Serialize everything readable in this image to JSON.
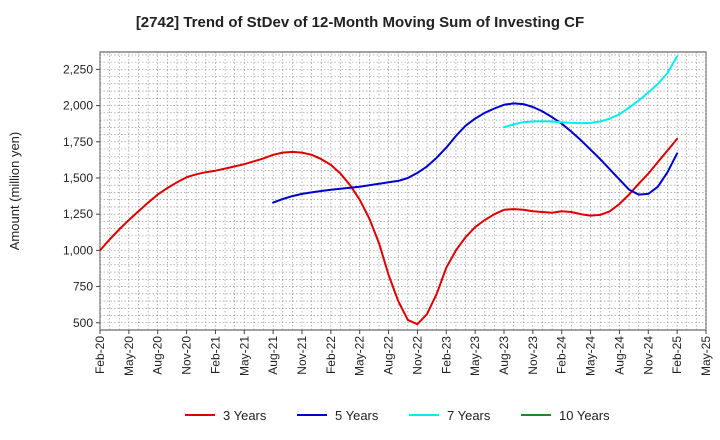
{
  "chart_data": {
    "type": "line",
    "title": "[2742]  Trend of StDev of 12-Month Moving Sum of Investing CF",
    "xlabel": "",
    "ylabel": "Amount (million yen)",
    "ylim": [
      450,
      2370
    ],
    "yticks": [
      500,
      750,
      1000,
      1250,
      1500,
      1750,
      2000,
      2250
    ],
    "ytick_labels": [
      "500",
      "750",
      "1,000",
      "1,250",
      "1,500",
      "1,750",
      "2,000",
      "2,250"
    ],
    "xlim": [
      "2020-02",
      "2025-05"
    ],
    "xticks": [
      "Feb-20",
      "May-20",
      "Aug-20",
      "Nov-20",
      "Feb-21",
      "May-21",
      "Aug-21",
      "Nov-21",
      "Feb-22",
      "May-22",
      "Aug-22",
      "Nov-22",
      "Feb-23",
      "May-23",
      "Aug-23",
      "Nov-23",
      "Feb-24",
      "May-24",
      "Aug-24",
      "Nov-24",
      "Feb-25",
      "May-25"
    ],
    "grid": true,
    "legend_position": "bottom",
    "series": [
      {
        "name": "3 Years",
        "color": "#dd0000",
        "x": [
          "2020-02",
          "2020-03",
          "2020-04",
          "2020-05",
          "2020-06",
          "2020-07",
          "2020-08",
          "2020-09",
          "2020-10",
          "2020-11",
          "2020-12",
          "2021-01",
          "2021-02",
          "2021-03",
          "2021-04",
          "2021-05",
          "2021-06",
          "2021-07",
          "2021-08",
          "2021-09",
          "2021-10",
          "2021-11",
          "2021-12",
          "2022-01",
          "2022-02",
          "2022-03",
          "2022-04",
          "2022-05",
          "2022-06",
          "2022-07",
          "2022-08",
          "2022-09",
          "2022-10",
          "2022-11",
          "2022-12",
          "2023-01",
          "2023-02",
          "2023-03",
          "2023-04",
          "2023-05",
          "2023-06",
          "2023-07",
          "2023-08",
          "2023-09",
          "2023-10",
          "2023-11",
          "2023-12",
          "2024-01",
          "2024-02",
          "2024-03",
          "2024-04",
          "2024-05",
          "2024-06",
          "2024-07",
          "2024-08",
          "2024-09",
          "2024-10",
          "2024-11",
          "2024-12",
          "2025-01",
          "2025-02"
        ],
        "y": [
          1000,
          1075,
          1145,
          1210,
          1270,
          1330,
          1385,
          1430,
          1470,
          1505,
          1525,
          1540,
          1550,
          1565,
          1580,
          1595,
          1615,
          1635,
          1660,
          1675,
          1680,
          1675,
          1660,
          1630,
          1590,
          1530,
          1450,
          1350,
          1220,
          1050,
          830,
          650,
          520,
          490,
          560,
          700,
          880,
          1000,
          1090,
          1160,
          1210,
          1250,
          1280,
          1285,
          1280,
          1270,
          1265,
          1260,
          1270,
          1265,
          1250,
          1240,
          1245,
          1270,
          1320,
          1385,
          1460,
          1530,
          1610,
          1690,
          1770
        ]
      },
      {
        "name": "5 Years",
        "color": "#0000cc",
        "x": [
          "2021-08",
          "2021-09",
          "2021-10",
          "2021-11",
          "2021-12",
          "2022-01",
          "2022-02",
          "2022-03",
          "2022-04",
          "2022-05",
          "2022-06",
          "2022-07",
          "2022-08",
          "2022-09",
          "2022-10",
          "2022-11",
          "2022-12",
          "2023-01",
          "2023-02",
          "2023-03",
          "2023-04",
          "2023-05",
          "2023-06",
          "2023-07",
          "2023-08",
          "2023-09",
          "2023-10",
          "2023-11",
          "2023-12",
          "2024-01",
          "2024-02",
          "2024-03",
          "2024-04",
          "2024-05",
          "2024-06",
          "2024-07",
          "2024-08",
          "2024-09",
          "2024-10",
          "2024-11",
          "2024-12",
          "2025-01",
          "2025-02"
        ],
        "y": [
          1330,
          1355,
          1375,
          1390,
          1400,
          1410,
          1418,
          1425,
          1432,
          1440,
          1450,
          1460,
          1470,
          1480,
          1500,
          1535,
          1580,
          1640,
          1710,
          1790,
          1860,
          1910,
          1950,
          1980,
          2005,
          2015,
          2010,
          1990,
          1960,
          1920,
          1875,
          1820,
          1760,
          1695,
          1630,
          1560,
          1490,
          1420,
          1385,
          1390,
          1440,
          1540,
          1670
        ]
      },
      {
        "name": "7 Years",
        "color": "#00eeee",
        "x": [
          "2023-08",
          "2023-09",
          "2023-10",
          "2023-11",
          "2023-12",
          "2024-01",
          "2024-02",
          "2024-03",
          "2024-04",
          "2024-05",
          "2024-06",
          "2024-07",
          "2024-08",
          "2024-09",
          "2024-10",
          "2024-11",
          "2024-12",
          "2025-01",
          "2025-02"
        ],
        "y": [
          1850,
          1870,
          1885,
          1890,
          1892,
          1890,
          1885,
          1880,
          1878,
          1880,
          1890,
          1910,
          1940,
          1985,
          2035,
          2090,
          2150,
          2225,
          2340
        ]
      },
      {
        "name": "10 Years",
        "color": "#228822",
        "x": [],
        "y": []
      }
    ]
  }
}
